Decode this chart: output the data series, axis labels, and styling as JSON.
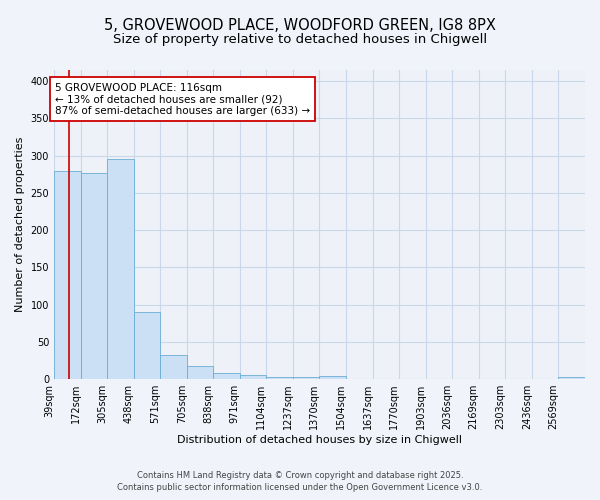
{
  "title_line1": "5, GROVEWOOD PLACE, WOODFORD GREEN, IG8 8PX",
  "title_line2": "Size of property relative to detached houses in Chigwell",
  "xlabel": "Distribution of detached houses by size in Chigwell",
  "ylabel": "Number of detached properties",
  "bin_edges": [
    39,
    172,
    305,
    438,
    571,
    705,
    838,
    971,
    1104,
    1237,
    1370,
    1504,
    1637,
    1770,
    1903,
    2036,
    2169,
    2303,
    2436,
    2569,
    2702
  ],
  "bar_heights": [
    280,
    277,
    295,
    90,
    33,
    17,
    8,
    6,
    3,
    3,
    4,
    0,
    0,
    0,
    0,
    0,
    0,
    0,
    0,
    3
  ],
  "bar_color": "#cce0f5",
  "bar_edge_color": "#6aaed6",
  "grid_color": "#c8d8ea",
  "background_color": "#f0f4fa",
  "plot_bg_color": "#eef2f8",
  "red_line_x": 116,
  "red_line_color": "#cc0000",
  "annotation_text": "5 GROVEWOOD PLACE: 116sqm\n← 13% of detached houses are smaller (92)\n87% of semi-detached houses are larger (633) →",
  "annotation_box_facecolor": "#ffffff",
  "annotation_box_edgecolor": "#cc0000",
  "ylim": [
    0,
    415
  ],
  "yticks": [
    0,
    50,
    100,
    150,
    200,
    250,
    300,
    350,
    400
  ],
  "footnote": "Contains HM Land Registry data © Crown copyright and database right 2025.\nContains public sector information licensed under the Open Government Licence v3.0.",
  "title_fontsize": 10.5,
  "subtitle_fontsize": 9.5,
  "ylabel_fontsize": 8,
  "xlabel_fontsize": 8,
  "tick_fontsize": 7,
  "annotation_fontsize": 7.5,
  "footnote_fontsize": 6
}
